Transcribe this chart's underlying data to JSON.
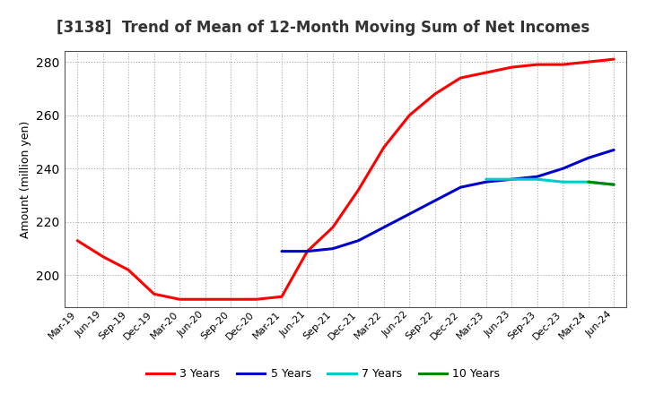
{
  "title": "[3138]  Trend of Mean of 12-Month Moving Sum of Net Incomes",
  "ylabel": "Amount (million yen)",
  "ylim": [
    188,
    284
  ],
  "yticks": [
    200,
    220,
    240,
    260,
    280
  ],
  "background_color": "#ffffff",
  "grid_color": "#aaaaaa",
  "legend_labels": [
    "3 Years",
    "5 Years",
    "7 Years",
    "10 Years"
  ],
  "legend_colors": [
    "#ff0000",
    "#0000cc",
    "#00cccc",
    "#008800"
  ],
  "x_labels": [
    "Mar-19",
    "Jun-19",
    "Sep-19",
    "Dec-19",
    "Mar-20",
    "Jun-20",
    "Sep-20",
    "Dec-20",
    "Mar-21",
    "Jun-21",
    "Sep-21",
    "Dec-21",
    "Mar-22",
    "Jun-22",
    "Sep-22",
    "Dec-22",
    "Mar-23",
    "Jun-23",
    "Sep-23",
    "Dec-23",
    "Mar-24",
    "Jun-24"
  ],
  "series_3y": [
    213,
    207,
    202,
    193,
    191,
    191,
    191,
    191,
    192,
    209,
    218,
    232,
    248,
    260,
    268,
    274,
    276,
    278,
    279,
    279,
    280,
    281
  ],
  "series_5y": [
    null,
    null,
    null,
    null,
    null,
    null,
    null,
    null,
    209,
    209,
    210,
    213,
    218,
    223,
    228,
    233,
    235,
    236,
    237,
    240,
    244,
    247
  ],
  "series_7y": [
    null,
    null,
    null,
    null,
    null,
    null,
    null,
    null,
    null,
    null,
    null,
    null,
    null,
    null,
    null,
    null,
    236,
    236,
    236,
    235,
    235,
    234
  ],
  "series_10y": [
    null,
    null,
    null,
    null,
    null,
    null,
    null,
    null,
    null,
    null,
    null,
    null,
    null,
    null,
    null,
    null,
    null,
    null,
    null,
    null,
    235,
    234
  ],
  "title_fontsize": 12,
  "ylabel_fontsize": 9,
  "tick_fontsize": 8,
  "legend_fontsize": 9
}
